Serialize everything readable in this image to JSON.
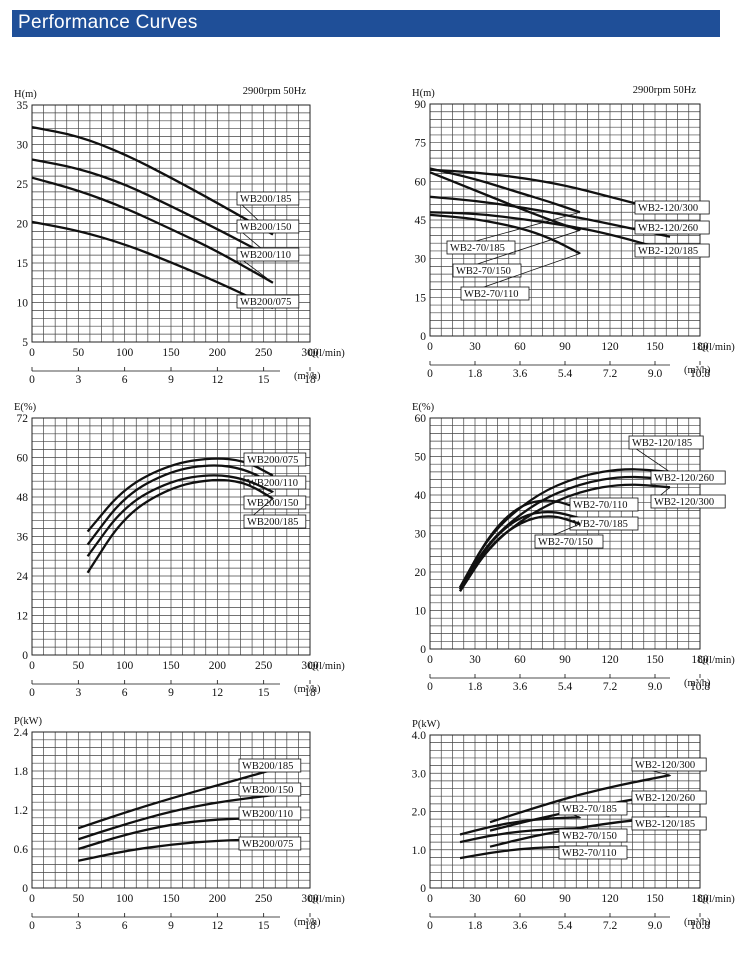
{
  "header": {
    "title": "Performance Curves"
  },
  "chart_data": [
    {
      "type": "line",
      "id": "wb200-head",
      "ylabel": "H(m)",
      "annotation": "2900rpm  50Hz",
      "xlabel": "Q(l/min)",
      "xlabel2": "(m³/h)",
      "xlim": [
        0,
        300
      ],
      "ylim": [
        5,
        35
      ],
      "xticks": [
        "0",
        "50",
        "100",
        "150",
        "200",
        "250",
        "300"
      ],
      "x2ticks": [
        "0",
        "3",
        "6",
        "9",
        "12",
        "15",
        "18"
      ],
      "yticks": [
        "5",
        "10",
        "15",
        "20",
        "25",
        "30",
        "35"
      ],
      "grid": true,
      "series": [
        {
          "name": "WB200/185",
          "x": [
            0,
            50,
            100,
            150,
            200,
            260
          ],
          "y": [
            32.2,
            31.1,
            28.8,
            25.8,
            22.6,
            18.6
          ]
        },
        {
          "name": "WB200/150",
          "x": [
            0,
            50,
            100,
            150,
            200,
            260
          ],
          "y": [
            28.1,
            27.0,
            25.0,
            22.2,
            19.3,
            15.6
          ]
        },
        {
          "name": "WB200/110",
          "x": [
            0,
            50,
            100,
            150,
            200,
            260
          ],
          "y": [
            25.8,
            24.2,
            22.0,
            19.3,
            16.5,
            12.5
          ]
        },
        {
          "name": "WB200/075",
          "x": [
            0,
            50,
            100,
            150,
            200,
            260
          ],
          "y": [
            20.2,
            19.1,
            17.4,
            15.1,
            12.6,
            9.3
          ]
        }
      ]
    },
    {
      "type": "line",
      "id": "wb2-head",
      "ylabel": "H(m)",
      "annotation": "2900rpm  50Hz",
      "xlabel": "Q(l/min)",
      "xlabel2": "(m³/h)",
      "xlim": [
        0,
        180
      ],
      "ylim": [
        0,
        90
      ],
      "xticks": [
        "0",
        "30",
        "60",
        "90",
        "120",
        "150",
        "180"
      ],
      "x2ticks": [
        "0",
        "1.8",
        "3.6",
        "5.4",
        "7.2",
        "9.0",
        "10.8"
      ],
      "yticks": [
        "0",
        "15",
        "30",
        "45",
        "60",
        "75",
        "90"
      ],
      "grid": true,
      "series": [
        {
          "name": "WB2-120/300",
          "x": [
            0,
            30,
            60,
            90,
            120,
            160
          ],
          "y": [
            64.5,
            63.5,
            61.5,
            58.5,
            54,
            48
          ]
        },
        {
          "name": "WB2-120/260",
          "x": [
            0,
            30,
            60,
            90,
            120,
            160
          ],
          "y": [
            54,
            52.5,
            50,
            47,
            43.5,
            38.5
          ]
        },
        {
          "name": "WB2-120/185",
          "x": [
            0,
            30,
            60,
            90,
            120,
            160
          ],
          "y": [
            48,
            47.5,
            45.5,
            43,
            39.5,
            33
          ]
        },
        {
          "name": "WB2-70/185",
          "x": [
            0,
            30,
            60,
            80,
            100
          ],
          "y": [
            65,
            61,
            55.5,
            52,
            48
          ]
        },
        {
          "name": "WB2-70/150",
          "x": [
            0,
            30,
            60,
            80,
            100
          ],
          "y": [
            63.5,
            56.5,
            49.5,
            45,
            41
          ]
        },
        {
          "name": "WB2-70/110",
          "x": [
            0,
            30,
            60,
            80,
            100
          ],
          "y": [
            47,
            45.5,
            42,
            38,
            32
          ]
        }
      ]
    },
    {
      "type": "line",
      "id": "wb200-eff",
      "ylabel": "E(%)",
      "xlabel": "Q(l/min)",
      "xlabel2": "(m³/h)",
      "xlim": [
        0,
        300
      ],
      "ylim": [
        0,
        72
      ],
      "xticks": [
        "0",
        "50",
        "100",
        "150",
        "200",
        "250",
        "300"
      ],
      "x2ticks": [
        "0",
        "3",
        "6",
        "9",
        "12",
        "15",
        "18"
      ],
      "yticks": [
        "0",
        "12",
        "24",
        "36",
        "48",
        "60",
        "72"
      ],
      "grid": true,
      "series": [
        {
          "name": "WB200/075",
          "x": [
            60,
            100,
            150,
            195,
            230,
            260
          ],
          "y": [
            37.5,
            51,
            58,
            60,
            59,
            54.5
          ]
        },
        {
          "name": "WB200/110",
          "x": [
            60,
            100,
            150,
            195,
            230,
            260
          ],
          "y": [
            33.5,
            48.5,
            56,
            58,
            56.5,
            52
          ]
        },
        {
          "name": "WB200/150",
          "x": [
            60,
            100,
            150,
            195,
            230,
            260
          ],
          "y": [
            30,
            45.5,
            53,
            55,
            53.5,
            49.5
          ]
        },
        {
          "name": "WB200/185",
          "x": [
            60,
            100,
            150,
            195,
            230,
            260
          ],
          "y": [
            25,
            42.5,
            51,
            53.5,
            52.5,
            47.5
          ]
        }
      ]
    },
    {
      "type": "line",
      "id": "wb2-eff",
      "ylabel": "E(%)",
      "xlabel": "Q(l/min)",
      "xlabel2": "(m³/h)",
      "xlim": [
        0,
        180
      ],
      "ylim": [
        0,
        60
      ],
      "xticks": [
        "0",
        "30",
        "60",
        "90",
        "120",
        "150",
        "180"
      ],
      "x2ticks": [
        "0",
        "1.8",
        "3.6",
        "5.4",
        "7.2",
        "9.0",
        "10.8"
      ],
      "yticks": [
        "0",
        "10",
        "20",
        "30",
        "40",
        "50",
        "60"
      ],
      "grid": true,
      "series": [
        {
          "name": "WB2-120/185",
          "x": [
            20,
            40,
            70,
            100,
            130,
            160
          ],
          "y": [
            16,
            30,
            40,
            45,
            47,
            46
          ]
        },
        {
          "name": "WB2-120/260",
          "x": [
            20,
            40,
            70,
            100,
            130,
            160
          ],
          "y": [
            15.5,
            28.5,
            38,
            43,
            45,
            44
          ]
        },
        {
          "name": "WB2-120/300",
          "x": [
            20,
            40,
            70,
            100,
            130,
            160
          ],
          "y": [
            15,
            27,
            36,
            41,
            43,
            42
          ]
        },
        {
          "name": "WB2-70/110",
          "x": [
            20,
            40,
            60,
            80,
            100
          ],
          "y": [
            16,
            30,
            37.5,
            39,
            36.5
          ]
        },
        {
          "name": "WB2-70/185",
          "x": [
            20,
            40,
            60,
            80,
            100
          ],
          "y": [
            15.5,
            28,
            34.5,
            36,
            34
          ]
        },
        {
          "name": "WB2-70/150",
          "x": [
            20,
            40,
            60,
            80,
            100
          ],
          "y": [
            15,
            27,
            33,
            35,
            32.5
          ]
        }
      ]
    },
    {
      "type": "line",
      "id": "wb200-power",
      "ylabel": "P(kW)",
      "xlabel": "Q(l/min)",
      "xlabel2": "(m³/h)",
      "xlim": [
        0,
        300
      ],
      "ylim": [
        0,
        2.4
      ],
      "xticks": [
        "0",
        "50",
        "100",
        "150",
        "200",
        "250",
        "300"
      ],
      "x2ticks": [
        "0",
        "3",
        "6",
        "9",
        "12",
        "15",
        "18"
      ],
      "yticks": [
        "0",
        "0.6",
        "1.2",
        "1.8",
        "2.4"
      ],
      "grid": true,
      "series": [
        {
          "name": "WB200/185",
          "x": [
            50,
            100,
            150,
            200,
            260
          ],
          "y": [
            0.92,
            1.16,
            1.38,
            1.58,
            1.82
          ]
        },
        {
          "name": "WB200/150",
          "x": [
            50,
            100,
            150,
            200,
            260
          ],
          "y": [
            0.75,
            0.98,
            1.18,
            1.32,
            1.43
          ]
        },
        {
          "name": "WB200/110",
          "x": [
            50,
            100,
            150,
            200,
            260
          ],
          "y": [
            0.6,
            0.82,
            0.98,
            1.06,
            1.08
          ]
        },
        {
          "name": "WB200/075",
          "x": [
            50,
            100,
            150,
            200,
            260
          ],
          "y": [
            0.42,
            0.57,
            0.67,
            0.73,
            0.75
          ]
        }
      ]
    },
    {
      "type": "line",
      "id": "wb2-power",
      "ylabel": "P(kW)",
      "xlabel": "Q(l/min)",
      "xlabel2": "(m³/h)",
      "xlim": [
        0,
        180
      ],
      "ylim": [
        0,
        4.0
      ],
      "xticks": [
        "0",
        "30",
        "60",
        "90",
        "120",
        "150",
        "180"
      ],
      "x2ticks": [
        "0",
        "1.8",
        "3.6",
        "5.4",
        "7.2",
        "9.0",
        "10.8"
      ],
      "yticks": [
        "0",
        "1.0",
        "2.0",
        "3.0",
        "4.0"
      ],
      "grid": true,
      "series": [
        {
          "name": "WB2-120/300",
          "x": [
            40,
            70,
            100,
            130,
            160
          ],
          "y": [
            1.72,
            2.1,
            2.45,
            2.72,
            2.95
          ]
        },
        {
          "name": "WB2-120/260",
          "x": [
            40,
            70,
            100,
            130,
            160
          ],
          "y": [
            1.5,
            1.8,
            2.05,
            2.28,
            2.48
          ]
        },
        {
          "name": "WB2-120/185",
          "x": [
            40,
            70,
            100,
            130,
            160
          ],
          "y": [
            1.08,
            1.37,
            1.58,
            1.75,
            1.85
          ]
        },
        {
          "name": "WB2-70/185",
          "x": [
            20,
            40,
            60,
            80,
            100
          ],
          "y": [
            1.4,
            1.6,
            1.75,
            1.82,
            1.85
          ]
        },
        {
          "name": "WB2-70/150",
          "x": [
            20,
            40,
            60,
            80,
            100
          ],
          "y": [
            1.2,
            1.37,
            1.48,
            1.54,
            1.56
          ]
        },
        {
          "name": "WB2-70/110",
          "x": [
            20,
            40,
            60,
            80,
            100
          ],
          "y": [
            0.78,
            0.92,
            1.02,
            1.07,
            1.08
          ]
        }
      ]
    }
  ]
}
